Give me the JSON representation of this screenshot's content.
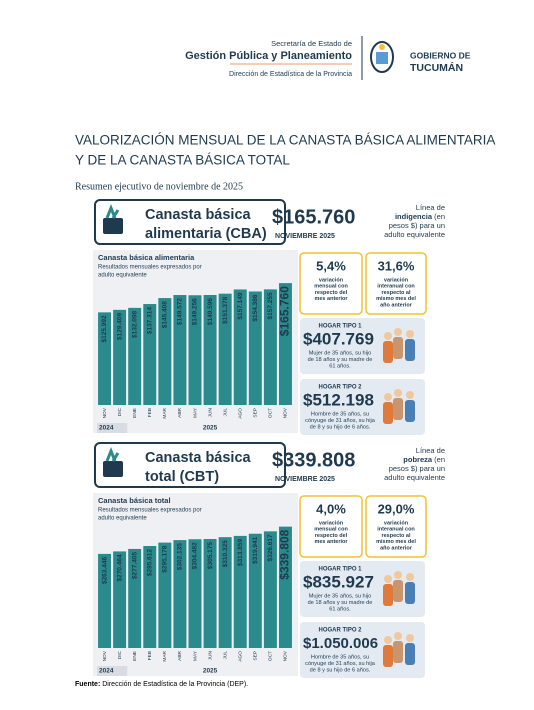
{
  "header": {
    "org": [
      "Secretaría de Estado de",
      "Gestión Pública y Planeamiento",
      "Dirección de Estadística de la Provincia"
    ],
    "gov": [
      "GOBIERNO DE",
      "TUCUMÁN"
    ]
  },
  "title": [
    "VALORIZACIÓN MENSUAL DE LA CANASTA BÁSICA ALIMENTARIA",
    "Y DE LA CANASTA BÁSICA TOTAL"
  ],
  "subtitle": "Resumen ejecutivo de noviembre de 2025",
  "sections": [
    {
      "name": [
        "Canasta básica",
        "alimentaria (CBA)"
      ],
      "value": "$165.760",
      "period": "NOVIEMBRE 2025",
      "note": [
        "Línea de",
        "indigencia",
        "(en",
        "pesos $) para un",
        "adulto equivalente"
      ],
      "chart": {
        "type": "bar",
        "title": "Canasta básica alimentaria",
        "subtitle": [
          "Resultados mensuales expresados por",
          "adulto equivalente"
        ],
        "categories": [
          "NOV",
          "DIC",
          "ENE",
          "FEB",
          "MAR",
          "ABR",
          "MAY",
          "JUN",
          "JUL",
          "AGO",
          "SEP",
          "OCT",
          "NOV"
        ],
        "values": [
          125992,
          129409,
          132098,
          137314,
          145408,
          149572,
          149256,
          149596,
          151378,
          157149,
          154386,
          157255,
          165760
        ],
        "value_labels": [
          "$125.992",
          "$129.409",
          "$132.098",
          "$137.314",
          "$145.408",
          "$149.572",
          "$149.256",
          "$149.596",
          "$151.378",
          "$157.149",
          "$154.386",
          "$157.255",
          "$165.760"
        ],
        "groups": [
          "2024",
          "2025"
        ],
        "ylim": [
          0,
          170000
        ],
        "color": "#2a8a8c"
      },
      "stats": [
        {
          "value": "5,4%",
          "text": [
            "variación",
            "mensual con",
            "respecto del",
            "mes anterior"
          ]
        },
        {
          "value": "31,6%",
          "text": [
            "variación",
            "interanual con",
            "respecto al",
            "mismo mes del",
            "año anterior"
          ]
        }
      ],
      "households": [
        {
          "label": "HOGAR TIPO 1",
          "value": "$407.769",
          "text": [
            "Mujer de 35 años, su hijo",
            "de 18 años y su madre de",
            "61 años."
          ]
        },
        {
          "label": "HOGAR TIPO 2",
          "value": "$512.198",
          "text": [
            "Hombre de 35 años, su",
            "cónyuge de 31 años, su hija",
            "de 8 y su hijo de 6 años."
          ]
        }
      ]
    },
    {
      "name": [
        "Canasta básica",
        "total (CBT)"
      ],
      "value": "$339.808",
      "period": "NOVIEMBRE 2025",
      "note": [
        "Línea de",
        "pobreza",
        "(en",
        "pesos $) para un",
        "adulto equivalente"
      ],
      "chart": {
        "type": "bar",
        "title": "Canasta básica total",
        "subtitle": [
          "Resultados mensuales expresados por",
          "adulto equivalente"
        ],
        "categories": [
          "NOV",
          "DIC",
          "ENE",
          "FEB",
          "MAR",
          "ABR",
          "MAY",
          "JUN",
          "JUL",
          "AGO",
          "SEP",
          "OCT",
          "NOV"
        ],
        "values": [
          263446,
          270464,
          277405,
          285612,
          295178,
          302135,
          304482,
          305175,
          310325,
          313859,
          319941,
          326617,
          339808
        ],
        "value_labels": [
          "$263.446",
          "$270.464",
          "$277.405",
          "$285.612",
          "$295.178",
          "$302.135",
          "$304.482",
          "$305.175",
          "$310.325",
          "$313.859",
          "$319.941",
          "$326.617",
          "$339.808"
        ],
        "groups": [
          "2024",
          "2025"
        ],
        "ylim": [
          0,
          350000
        ],
        "color": "#2a8a8c"
      },
      "stats": [
        {
          "value": "4,0%",
          "text": [
            "variación",
            "mensual con",
            "respecto del",
            "mes anterior"
          ]
        },
        {
          "value": "29,0%",
          "text": [
            "variación",
            "interanual con",
            "respecto al",
            "mismo mes del",
            "año anterior"
          ]
        }
      ],
      "households": [
        {
          "label": "HOGAR TIPO 1",
          "value": "$835.927",
          "text": [
            "Mujer de 35 años, su hijo",
            "de 18 años y su madre de",
            "61 años."
          ]
        },
        {
          "label": "HOGAR TIPO 2",
          "value": "$1.050.006",
          "text": [
            "Hombre de 35 años, su",
            "cónyuge de 31 años, su hija",
            "de 8 y su hijo de 6 años."
          ]
        }
      ]
    }
  ],
  "source": {
    "label": "Fuente:",
    "text": "Dirección de Estadística de la Provincia (DEP)."
  }
}
